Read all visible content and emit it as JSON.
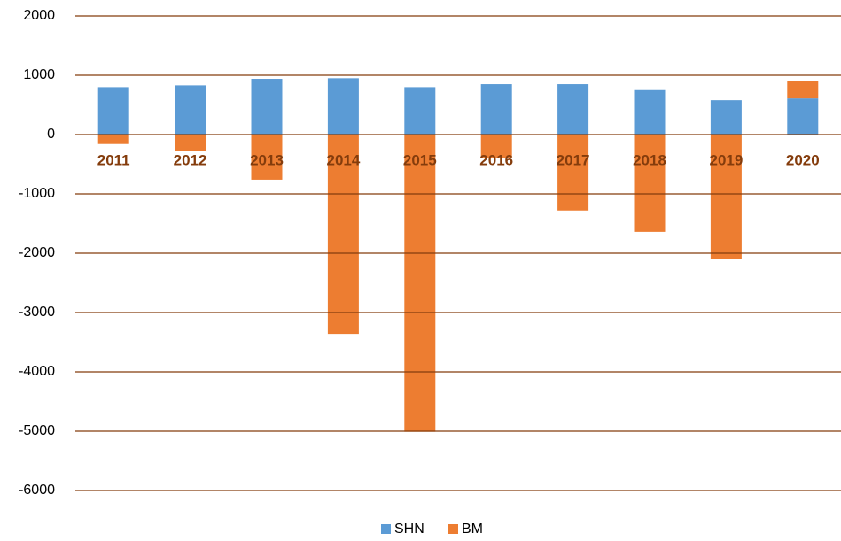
{
  "chart_data": {
    "type": "stacked_bar",
    "categories": [
      "2011",
      "2012",
      "2013",
      "2014",
      "2015",
      "2016",
      "2017",
      "2018",
      "2019",
      "2020"
    ],
    "series": [
      {
        "name": "SHN",
        "color": "#5b9bd5",
        "values": [
          800,
          830,
          940,
          950,
          800,
          850,
          850,
          750,
          580,
          610
        ]
      },
      {
        "name": "BM",
        "color": "#ed7d31",
        "values": [
          -160,
          -270,
          -760,
          -3360,
          -5010,
          -400,
          -1280,
          -1640,
          -2090,
          300
        ]
      }
    ],
    "ylim": [
      -6000,
      2000
    ],
    "yticks": [
      -6000,
      -5000,
      -4000,
      -3000,
      -2000,
      -1000,
      0,
      1000,
      2000
    ],
    "grid": true,
    "legend": "bottom"
  }
}
